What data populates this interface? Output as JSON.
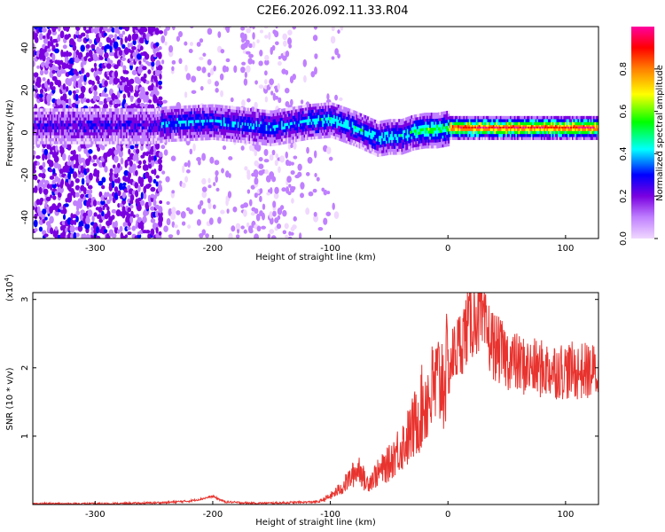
{
  "title": "C2E6.2026.092.11.33.R04",
  "chart_data": [
    {
      "type": "heatmap",
      "title": "C2E6.2026.092.11.33.R04",
      "xlabel": "Height of straight line (km)",
      "ylabel": "Frequency (Hz)",
      "xlim": [
        -353,
        128
      ],
      "ylim": [
        -50,
        50
      ],
      "xticks": [
        -300,
        -200,
        -100,
        0,
        100
      ],
      "yticks": [
        -40,
        -20,
        0,
        20,
        40
      ],
      "ridge": {
        "x": [
          -353,
          -300,
          -250,
          -240,
          -200,
          -150,
          -120,
          -100,
          -80,
          -60,
          -50,
          -40,
          -30,
          -20,
          -10,
          0,
          20,
          50,
          100,
          128
        ],
        "frequency_hz": [
          3,
          3,
          3,
          4,
          5,
          2,
          5,
          6,
          2,
          -3,
          -2,
          -2,
          0,
          1,
          1,
          2,
          2,
          2,
          2,
          2
        ]
      },
      "colorbar": {
        "label": "Normalized spectral amplitude",
        "range": [
          0,
          1
        ],
        "ticks": [
          "0.0",
          "0.2",
          "0.4",
          "0.6",
          "0.8"
        ],
        "colors": [
          "#f0d8ff",
          "#c080ff",
          "#7a00e0",
          "#0000ff",
          "#00ffff",
          "#00ff00",
          "#ffff00",
          "#ff8000",
          "#ff0000",
          "#ff00a0"
        ]
      }
    },
    {
      "type": "line",
      "xlabel": "Height of straight line (km)",
      "ylabel": "SNR (10 * v/v)",
      "y_multiplier": "(x10",
      "y_multiplier_exp": "4",
      "y_multiplier_close": ")",
      "xlim": [
        -353,
        128
      ],
      "ylim": [
        0,
        3.1
      ],
      "xticks": [
        -300,
        -200,
        -100,
        0,
        100
      ],
      "yticks": [
        1,
        2,
        3
      ],
      "color": "#e8332e",
      "series": [
        {
          "x": [
            -353,
            -320,
            -290,
            -260,
            -240,
            -220,
            -210,
            -200,
            -190,
            -170,
            -150,
            -130,
            -110,
            -100,
            -90,
            -80,
            -75,
            -70,
            -60,
            -50,
            -45,
            -40,
            -35,
            -30,
            -25,
            -20,
            -15,
            -10,
            -5,
            0,
            5,
            10,
            15,
            20,
            25,
            30,
            35,
            40,
            50,
            60,
            70,
            80,
            90,
            100,
            110,
            120,
            128
          ],
          "y": [
            0.01,
            0.01,
            0.01,
            0.02,
            0.03,
            0.05,
            0.08,
            0.12,
            0.04,
            0.02,
            0.02,
            0.03,
            0.04,
            0.12,
            0.25,
            0.45,
            0.55,
            0.3,
            0.45,
            0.6,
            0.75,
            0.85,
            0.95,
            1.1,
            1.3,
            1.5,
            1.6,
            1.75,
            1.85,
            1.95,
            2.2,
            2.35,
            2.55,
            2.7,
            2.8,
            2.6,
            2.45,
            2.3,
            2.15,
            2.05,
            2.0,
            1.98,
            1.97,
            1.96,
            1.95,
            1.95,
            1.93
          ]
        }
      ]
    }
  ]
}
